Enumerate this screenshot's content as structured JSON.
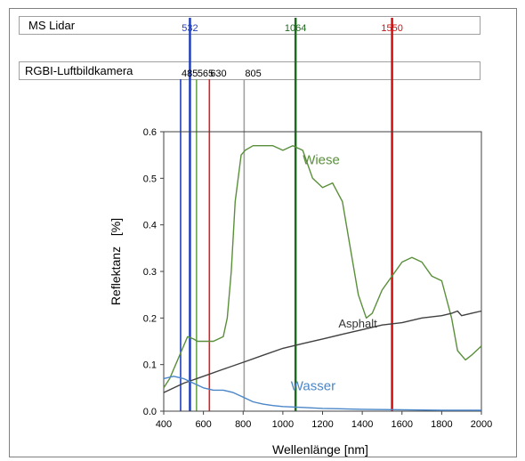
{
  "bands": {
    "lidar": {
      "title": "MS Lidar",
      "lines": [
        {
          "label": "532",
          "nm": 532,
          "color": "#1f3fbf"
        },
        {
          "label": "1064",
          "nm": 1064,
          "color": "#1e6b1e"
        },
        {
          "label": "1550",
          "nm": 1550,
          "color": "#d01010"
        }
      ]
    },
    "rgbi": {
      "title": "RGBI-Luftbildkamera",
      "lines": [
        {
          "label": "485",
          "nm": 485,
          "color": "#1f3fbf"
        },
        {
          "label": "565",
          "nm": 565,
          "color": "#6aa84f"
        },
        {
          "label": "630",
          "nm": 630,
          "color": "#e02020"
        },
        {
          "label": "805",
          "nm": 805,
          "color": "#a0a0a0"
        }
      ]
    }
  },
  "chart_data": {
    "type": "line",
    "xlabel": "Wellenlänge [nm]",
    "ylabel": "Reflektanz",
    "yunit": "[%]",
    "xlim": [
      400,
      2000
    ],
    "ylim": [
      0,
      0.6
    ],
    "xticks": [
      400,
      600,
      800,
      1000,
      1200,
      1400,
      1600,
      1800,
      2000
    ],
    "yticks": [
      0.0,
      0.1,
      0.2,
      0.3,
      0.4,
      0.5,
      0.6
    ],
    "ytick_labels": [
      "0.0",
      "0.1",
      "0.2",
      "0.3",
      "0.4",
      "0.5",
      "0.6"
    ],
    "grid": false,
    "series": [
      {
        "name": "Wiese",
        "color": "#5a8f3a",
        "x": [
          400,
          430,
          460,
          490,
          520,
          550,
          570,
          600,
          650,
          700,
          720,
          740,
          760,
          790,
          810,
          850,
          900,
          950,
          1000,
          1050,
          1100,
          1150,
          1200,
          1250,
          1300,
          1340,
          1380,
          1420,
          1450,
          1500,
          1550,
          1600,
          1650,
          1700,
          1750,
          1800,
          1850,
          1880,
          1920,
          1950,
          2000
        ],
        "y": [
          0.05,
          0.07,
          0.1,
          0.13,
          0.16,
          0.155,
          0.15,
          0.15,
          0.15,
          0.16,
          0.2,
          0.3,
          0.45,
          0.55,
          0.56,
          0.57,
          0.57,
          0.57,
          0.56,
          0.57,
          0.56,
          0.5,
          0.48,
          0.49,
          0.45,
          0.35,
          0.25,
          0.2,
          0.21,
          0.26,
          0.29,
          0.32,
          0.33,
          0.32,
          0.29,
          0.28,
          0.2,
          0.13,
          0.11,
          0.12,
          0.14
        ]
      },
      {
        "name": "Asphalt",
        "color": "#404040",
        "x": [
          400,
          500,
          600,
          700,
          800,
          900,
          1000,
          1100,
          1200,
          1300,
          1400,
          1500,
          1600,
          1700,
          1800,
          1850,
          1880,
          1900,
          1950,
          2000
        ],
        "y": [
          0.04,
          0.06,
          0.075,
          0.09,
          0.105,
          0.12,
          0.135,
          0.145,
          0.155,
          0.165,
          0.175,
          0.185,
          0.19,
          0.2,
          0.205,
          0.21,
          0.215,
          0.205,
          0.21,
          0.215
        ]
      },
      {
        "name": "Wasser",
        "color": "#4a86c8",
        "x": [
          400,
          450,
          500,
          550,
          600,
          650,
          700,
          750,
          800,
          850,
          900,
          950,
          1000,
          1100,
          1200,
          1400,
          1600,
          1800,
          2000
        ],
        "y": [
          0.07,
          0.075,
          0.07,
          0.06,
          0.05,
          0.045,
          0.045,
          0.04,
          0.03,
          0.02,
          0.015,
          0.012,
          0.01,
          0.008,
          0.006,
          0.004,
          0.003,
          0.002,
          0.002
        ]
      }
    ],
    "annotations": [
      {
        "text": "Wiese",
        "x": 1100,
        "y": 0.53,
        "color": "#5a8f3a"
      },
      {
        "text": "Asphalt",
        "x": 1280,
        "y": 0.18,
        "color": "#333333"
      },
      {
        "text": "Wasser",
        "x": 1040,
        "y": 0.045,
        "color": "#4a86c8"
      }
    ]
  }
}
